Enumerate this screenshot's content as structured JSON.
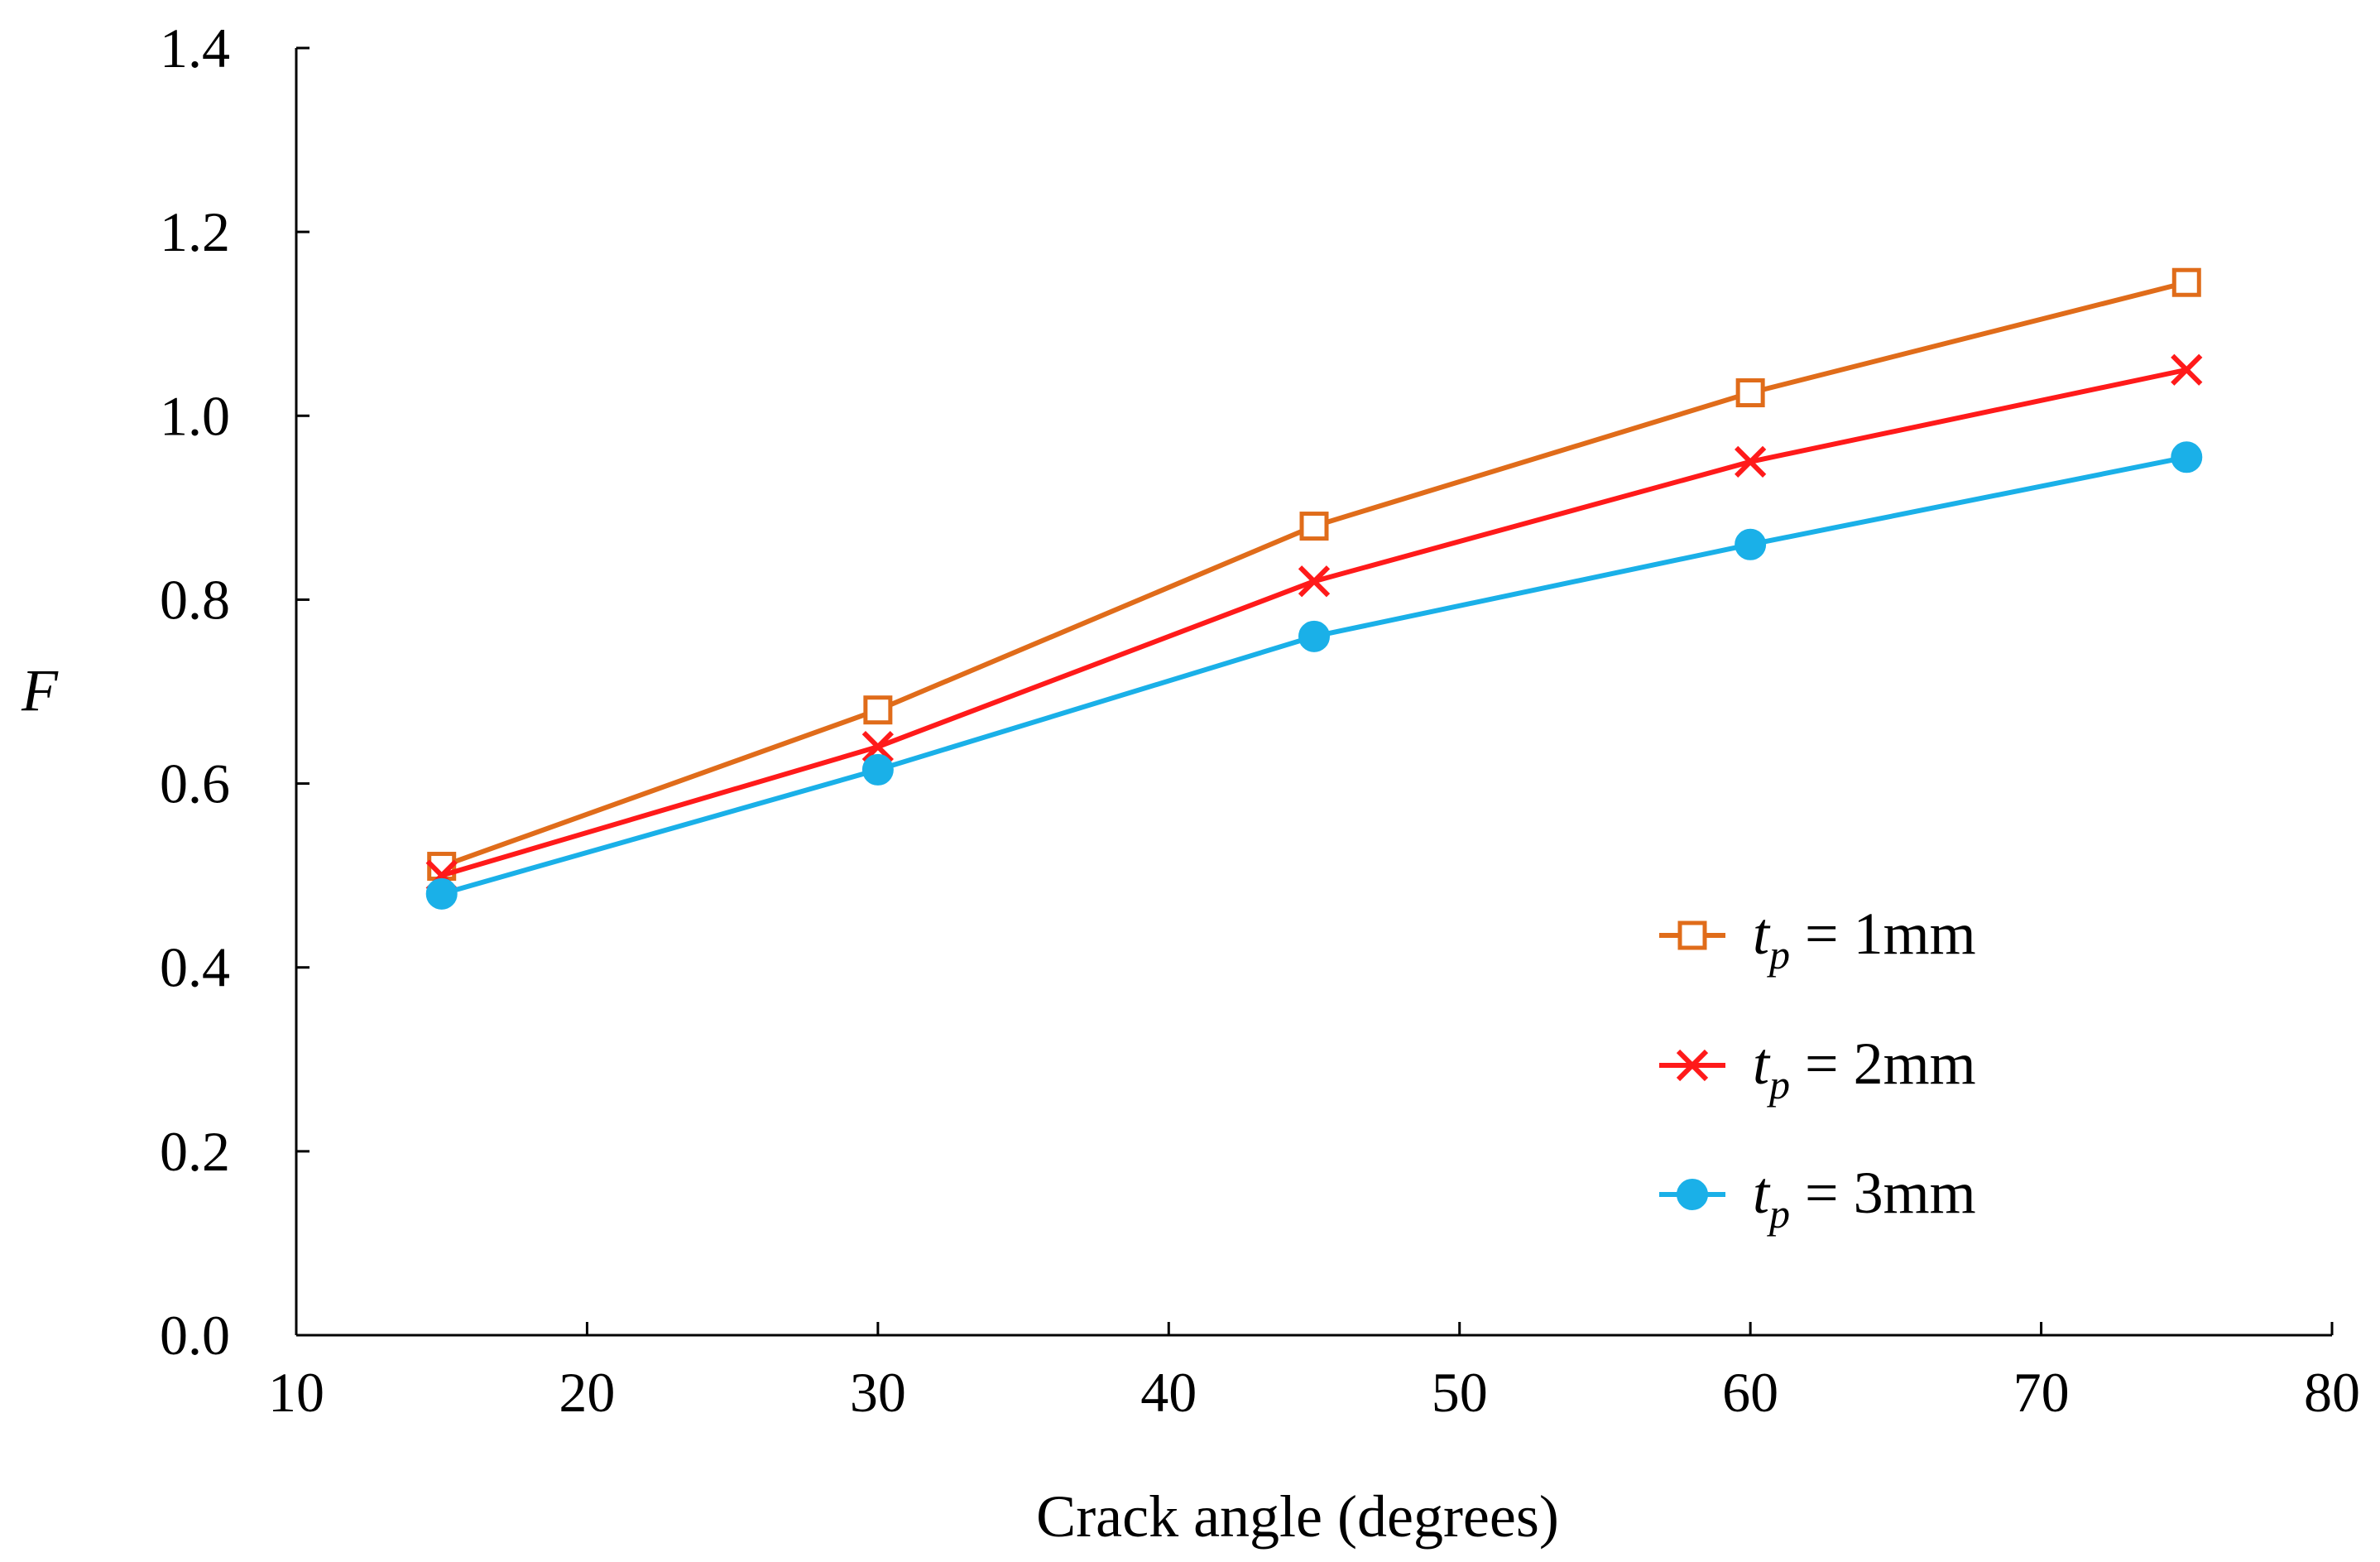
{
  "chart_data": {
    "type": "line",
    "title": "",
    "xlabel": "Crack angle (degrees)",
    "ylabel": "F",
    "xlim": [
      10,
      80
    ],
    "ylim": [
      0.0,
      1.4
    ],
    "xticks": [
      10,
      20,
      30,
      40,
      50,
      60,
      70,
      80
    ],
    "yticks": [
      0.0,
      0.2,
      0.4,
      0.6,
      0.8,
      1.0,
      1.2,
      1.4
    ],
    "ytick_labels": [
      "0.0",
      "0.2",
      "0.4",
      "0.6",
      "0.8",
      "1.0",
      "1.2",
      "1.4"
    ],
    "grid": false,
    "legend_position": "lower-right",
    "x": [
      15,
      30,
      45,
      60,
      75
    ],
    "series": [
      {
        "name": "t_p = 1mm",
        "label_var": "t",
        "label_sub": "p",
        "label_rest": " = 1mm",
        "marker": "open-square",
        "color": "#E06C1A",
        "values": [
          0.51,
          0.68,
          0.88,
          1.025,
          1.145
        ]
      },
      {
        "name": "t_p = 2mm",
        "label_var": "t",
        "label_sub": "p",
        "label_rest": " = 2mm",
        "marker": "x",
        "color": "#FF1A1A",
        "values": [
          0.5,
          0.64,
          0.82,
          0.95,
          1.05
        ]
      },
      {
        "name": "t_p = 3mm",
        "label_var": "t",
        "label_sub": "p",
        "label_rest": " = 3mm",
        "marker": "filled-circle",
        "color": "#1AB0E8",
        "values": [
          0.48,
          0.615,
          0.76,
          0.86,
          0.955
        ]
      }
    ]
  }
}
